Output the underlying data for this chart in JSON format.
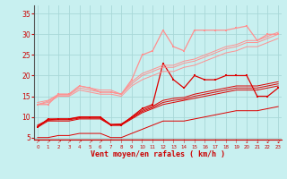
{
  "background_color": "#c8f0f0",
  "grid_color": "#a8d8d8",
  "xlabel": "Vent moyen/en rafales ( km/h )",
  "ylabel_ticks": [
    5,
    10,
    15,
    20,
    25,
    30,
    35
  ],
  "x_ticks": [
    0,
    1,
    2,
    3,
    4,
    5,
    6,
    7,
    8,
    9,
    10,
    11,
    12,
    13,
    14,
    15,
    16,
    17,
    18,
    19,
    20,
    21,
    22,
    23
  ],
  "xlim": [
    -0.3,
    23.3
  ],
  "ylim": [
    4.5,
    37
  ],
  "series": [
    {
      "x": [
        0,
        1,
        2,
        3,
        4,
        5,
        6,
        7,
        8,
        9,
        10,
        11,
        12,
        13,
        14,
        15,
        16,
        17,
        18,
        19,
        20,
        21,
        22,
        23
      ],
      "y": [
        7.5,
        9.5,
        9.5,
        9.5,
        10,
        10,
        10,
        8,
        8,
        10,
        12,
        13,
        23,
        19,
        17,
        20,
        19,
        19,
        20,
        20,
        20,
        15,
        15,
        17
      ],
      "color": "#dd0000",
      "lw": 0.9,
      "marker": "s",
      "ms": 2.0
    },
    {
      "x": [
        0,
        1,
        2,
        3,
        4,
        5,
        6,
        7,
        8,
        9,
        10,
        11,
        12,
        13,
        14,
        15,
        16,
        17,
        18,
        19,
        20,
        21,
        22,
        23
      ],
      "y": [
        7.5,
        9,
        9,
        9,
        9.5,
        9.5,
        9.5,
        8,
        8,
        9.5,
        11,
        12,
        13,
        13.5,
        14,
        14.5,
        15,
        15.5,
        16,
        16.5,
        16.5,
        16.5,
        17,
        17.5
      ],
      "color": "#dd0000",
      "lw": 0.7,
      "marker": null,
      "ms": 0
    },
    {
      "x": [
        0,
        1,
        2,
        3,
        4,
        5,
        6,
        7,
        8,
        9,
        10,
        11,
        12,
        13,
        14,
        15,
        16,
        17,
        18,
        19,
        20,
        21,
        22,
        23
      ],
      "y": [
        7.8,
        9.2,
        9.3,
        9.3,
        9.7,
        9.7,
        9.7,
        8.1,
        8.2,
        9.7,
        11.3,
        12.3,
        13.5,
        14,
        14.3,
        15,
        15.5,
        16,
        16.5,
        17,
        17,
        17,
        17.5,
        18
      ],
      "color": "#dd0000",
      "lw": 0.7,
      "marker": null,
      "ms": 0
    },
    {
      "x": [
        0,
        1,
        2,
        3,
        4,
        5,
        6,
        7,
        8,
        9,
        10,
        11,
        12,
        13,
        14,
        15,
        16,
        17,
        18,
        19,
        20,
        21,
        22,
        23
      ],
      "y": [
        8,
        9.3,
        9.5,
        9.5,
        9.9,
        9.9,
        9.9,
        8.2,
        8.3,
        9.9,
        11.6,
        12.6,
        14,
        14.5,
        14.7,
        15.5,
        16,
        16.5,
        17,
        17.5,
        17.5,
        17.5,
        18,
        18.5
      ],
      "color": "#dd0000",
      "lw": 0.7,
      "marker": null,
      "ms": 0
    },
    {
      "x": [
        0,
        1,
        2,
        3,
        4,
        5,
        6,
        7,
        8,
        9,
        10,
        11,
        12,
        13,
        14,
        15,
        16,
        17,
        18,
        19,
        20,
        21,
        22,
        23
      ],
      "y": [
        5,
        5,
        5.5,
        5.5,
        6,
        6,
        6,
        5,
        5,
        6,
        7,
        8,
        9,
        9,
        9,
        9.5,
        10,
        10.5,
        11,
        11.5,
        11.5,
        11.5,
        12,
        12.5
      ],
      "color": "#dd0000",
      "lw": 0.7,
      "marker": null,
      "ms": 0
    },
    {
      "x": [
        0,
        1,
        2,
        3,
        4,
        5,
        6,
        7,
        8,
        9,
        10,
        11,
        12,
        13,
        14,
        15,
        16,
        17,
        18,
        19,
        20,
        21,
        22,
        23
      ],
      "y": [
        13,
        13,
        15.5,
        15.5,
        17.5,
        17,
        16,
        16,
        15.5,
        19,
        25,
        26,
        31,
        27,
        26,
        31,
        31,
        31,
        31,
        31.5,
        32,
        28.5,
        30,
        30
      ],
      "color": "#ff9090",
      "lw": 0.9,
      "marker": "s",
      "ms": 2.0
    },
    {
      "x": [
        0,
        1,
        2,
        3,
        4,
        5,
        6,
        7,
        8,
        9,
        10,
        11,
        12,
        13,
        14,
        15,
        16,
        17,
        18,
        19,
        20,
        21,
        22,
        23
      ],
      "y": [
        13,
        13.5,
        15,
        15,
        16.5,
        16,
        15.5,
        15.5,
        15,
        17.5,
        19,
        20,
        21,
        21,
        22,
        22.5,
        23.5,
        24.5,
        25.5,
        26,
        27,
        27,
        28,
        29
      ],
      "color": "#ff9090",
      "lw": 0.7,
      "marker": null,
      "ms": 0
    },
    {
      "x": [
        0,
        1,
        2,
        3,
        4,
        5,
        6,
        7,
        8,
        9,
        10,
        11,
        12,
        13,
        14,
        15,
        16,
        17,
        18,
        19,
        20,
        21,
        22,
        23
      ],
      "y": [
        13,
        13.8,
        15.3,
        15.3,
        17,
        16.5,
        16,
        16,
        15.5,
        18,
        20,
        21,
        22,
        22,
        23,
        23.5,
        24.5,
        25.5,
        26.5,
        27,
        28,
        28,
        29,
        30
      ],
      "color": "#ff9090",
      "lw": 0.7,
      "marker": null,
      "ms": 0
    },
    {
      "x": [
        0,
        1,
        2,
        3,
        4,
        5,
        6,
        7,
        8,
        9,
        10,
        11,
        12,
        13,
        14,
        15,
        16,
        17,
        18,
        19,
        20,
        21,
        22,
        23
      ],
      "y": [
        13.5,
        14,
        15.5,
        15.5,
        17.5,
        17,
        16.5,
        16.5,
        15.5,
        18.5,
        20.5,
        21.5,
        22.5,
        22.5,
        23.5,
        24,
        25,
        26,
        27,
        27.5,
        28.5,
        28.5,
        29.5,
        30.5
      ],
      "color": "#ff9090",
      "lw": 0.7,
      "marker": null,
      "ms": 0
    }
  ],
  "arrow_chars": [
    "↗",
    "↗",
    "↗",
    "↗",
    "↗",
    "↗",
    "↗",
    "↑",
    "↑",
    "↑",
    "↑",
    "↑",
    "↑",
    "↑",
    "↑",
    "↑",
    "↑",
    "↑",
    "↑",
    "↑",
    "↓",
    "↓",
    "↙",
    "↙"
  ]
}
